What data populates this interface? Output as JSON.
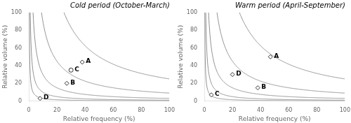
{
  "chart_data": [
    {
      "type": "scatter",
      "title": "Cold period (October-March)",
      "x_label": "Relative frequency (%)",
      "y_label": "Relative volume (%)",
      "x": [
        38,
        27,
        30,
        8
      ],
      "values": [
        44,
        20,
        35,
        3
      ],
      "point_labels": [
        "A",
        "B",
        "C",
        "D"
      ],
      "markers": [
        "diamond",
        "diamond",
        "circle",
        "diamond"
      ],
      "color": "#333333",
      "curve_constants": [
        30,
        100,
        300,
        900,
        2500
      ],
      "curve_color": "#909090",
      "xlim": [
        0,
        100
      ],
      "ylim": [
        0,
        100
      ],
      "xticks": [
        0,
        20,
        40,
        60,
        80,
        100
      ],
      "yticks": [
        0,
        20,
        40,
        60,
        80,
        100
      ],
      "grid": false
    },
    {
      "type": "scatter",
      "title": "Warm period (April-September)",
      "x_label": "Relative frequency (%)",
      "y_label": "Relative volume (%)",
      "x": [
        47,
        38,
        5,
        20
      ],
      "values": [
        50,
        15,
        7,
        30
      ],
      "point_labels": [
        "A",
        "B",
        "C",
        "D"
      ],
      "markers": [
        "diamond",
        "diamond",
        "diamond",
        "diamond"
      ],
      "color": "#333333",
      "curve_constants": [
        30,
        100,
        300,
        900,
        2500
      ],
      "curve_color": "#909090",
      "xlim": [
        0,
        100
      ],
      "ylim": [
        0,
        100
      ],
      "xticks": [
        0,
        20,
        40,
        60,
        80,
        100
      ],
      "yticks": [
        0,
        20,
        40,
        60,
        80,
        100
      ],
      "grid": false
    }
  ]
}
